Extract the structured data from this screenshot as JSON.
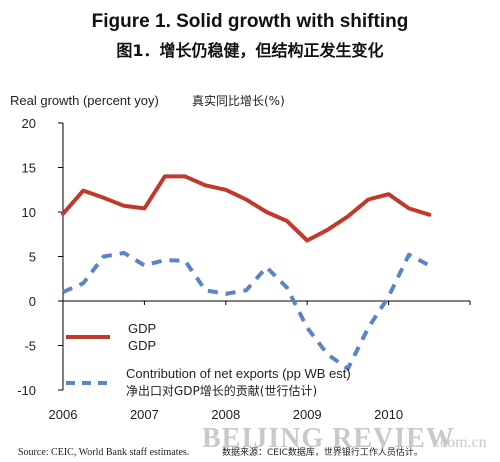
{
  "header": {
    "title": "Figure 1. Solid growth with shifting",
    "subtitle": "图1．增长仍稳健，但结构正发生变化"
  },
  "axis": {
    "ylabel": "Real growth (percent yoy)",
    "ylabel_cn": "真实同比增长(%)"
  },
  "legend": {
    "gdp_label": "GDP",
    "gdp_label_cn": "GDP",
    "netexp_label": "Contribution of net exports (pp WB est)",
    "netexp_label_cn": "净出口对GDP增长的贡献(世行估计)"
  },
  "footer": {
    "source": "Source: CEIC, World Bank staff estimates.",
    "source_cn": "数据来源：CEIC数据库，世界银行工作人员估计。",
    "watermark": "BEIJING REVIEW",
    "watermark_suffix": ".com.cn"
  },
  "colors": {
    "gdp": "#c0392b",
    "netexp": "#5b84c4",
    "axis": "#000000"
  },
  "chart_data": {
    "type": "line",
    "title": "Figure 1. Solid growth with shifting",
    "ylabel": "Real growth (percent yoy)",
    "xlabel": "",
    "ylim": [
      -10,
      20
    ],
    "xlim": [
      2006,
      2011
    ],
    "yticks": [
      -10,
      -5,
      0,
      5,
      10,
      15,
      20
    ],
    "xticks": [
      2006,
      2007,
      2008,
      2009,
      2010
    ],
    "grid": false,
    "legend_position": "bottom-left",
    "series": [
      {
        "name": "GDP",
        "style": "solid",
        "color": "#c0392b",
        "points": [
          [
            2006.0,
            9.8
          ],
          [
            2006.25,
            12.4
          ],
          [
            2006.5,
            11.6
          ],
          [
            2006.75,
            10.7
          ],
          [
            2007.0,
            10.4
          ],
          [
            2007.25,
            14.0
          ],
          [
            2007.5,
            14.0
          ],
          [
            2007.75,
            13.0
          ],
          [
            2008.0,
            12.5
          ],
          [
            2008.25,
            11.4
          ],
          [
            2008.5,
            10.0
          ],
          [
            2008.75,
            9.0
          ],
          [
            2009.0,
            6.8
          ],
          [
            2009.25,
            8.0
          ],
          [
            2009.5,
            9.5
          ],
          [
            2009.75,
            11.4
          ],
          [
            2010.0,
            12.0
          ],
          [
            2010.25,
            10.4
          ],
          [
            2010.5,
            9.7
          ]
        ]
      },
      {
        "name": "Contribution of net exports (pp WB est)",
        "style": "dashed",
        "color": "#5b84c4",
        "points": [
          [
            2006.0,
            1.0
          ],
          [
            2006.25,
            2.0
          ],
          [
            2006.5,
            5.0
          ],
          [
            2006.75,
            5.4
          ],
          [
            2007.0,
            4.0
          ],
          [
            2007.25,
            4.6
          ],
          [
            2007.5,
            4.5
          ],
          [
            2007.75,
            1.2
          ],
          [
            2008.0,
            0.8
          ],
          [
            2008.25,
            1.2
          ],
          [
            2008.5,
            3.8
          ],
          [
            2008.75,
            1.5
          ],
          [
            2009.0,
            -3.0
          ],
          [
            2009.25,
            -6.0
          ],
          [
            2009.5,
            -7.6
          ],
          [
            2009.75,
            -3.0
          ],
          [
            2010.0,
            0.5
          ],
          [
            2010.25,
            5.2
          ],
          [
            2010.5,
            4.0
          ]
        ]
      }
    ]
  }
}
